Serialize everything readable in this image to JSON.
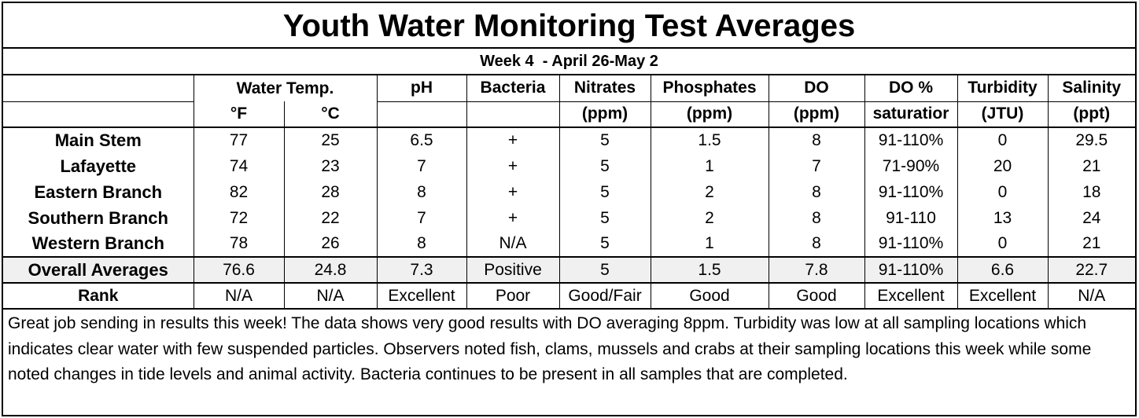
{
  "title": "Youth Water Monitoring Test Averages",
  "week": "Week 4  - April 26-May 2",
  "header_row1": [
    "",
    "Water Temp.",
    "pH",
    "Bacteria",
    "Nitrates",
    "Phosphates",
    "DO",
    "DO %",
    "Turbidity",
    "Salinity"
  ],
  "header_row2": [
    "",
    "°F",
    "°C",
    "",
    "",
    "(ppm)",
    "(ppm)",
    "(ppm)",
    "saturatior",
    "(JTU)",
    "(ppt)"
  ],
  "rows": [
    {
      "name": "Main Stem",
      "values": [
        "77",
        "25",
        "6.5",
        "+",
        "5",
        "1.5",
        "8",
        "91-110%",
        "0",
        "29.5"
      ]
    },
    {
      "name": "Lafayette",
      "values": [
        "74",
        "23",
        "7",
        "+",
        "5",
        "1",
        "7",
        "71-90%",
        "20",
        "21"
      ]
    },
    {
      "name": "Eastern Branch",
      "values": [
        "82",
        "28",
        "8",
        "+",
        "5",
        "2",
        "8",
        "91-110%",
        "0",
        "18"
      ]
    },
    {
      "name": "Southern Branch",
      "values": [
        "72",
        "22",
        "7",
        "+",
        "5",
        "2",
        "8",
        "91-110",
        "13",
        "24"
      ]
    },
    {
      "name": "Western Branch",
      "values": [
        "78",
        "26",
        "8",
        "N/A",
        "5",
        "1",
        "8",
        "91-110%",
        "0",
        "21"
      ]
    }
  ],
  "averages": {
    "name": "Overall Averages",
    "values": [
      "76.6",
      "24.8",
      "7.3",
      "Positive",
      "5",
      "1.5",
      "7.8",
      "91-110%",
      "6.6",
      "22.7"
    ]
  },
  "rank": {
    "name": "Rank",
    "values": [
      "N/A",
      "N/A",
      "Excellent",
      "Poor",
      "Good/Fair",
      "Good",
      "Good",
      "Excellent",
      "Excellent",
      "N/A"
    ]
  },
  "comment": "Great job sending in results this week! The data shows very good results with DO averaging 8ppm. Turbidity was low at all sampling locations which indicates clear water with few suspended particles. Observers noted fish, clams, mussels and crabs at their sampling locations this week while some noted changes in tide levels and animal activity. Bacteria continues to be present in all samples that are completed."
}
